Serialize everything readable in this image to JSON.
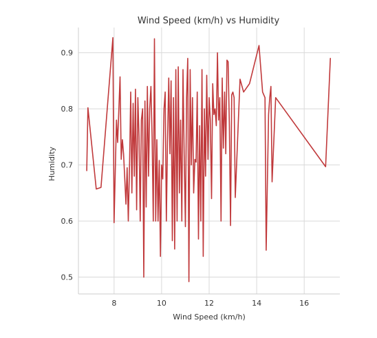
{
  "chart_data": {
    "type": "line",
    "title": "Wind Speed (km/h) vs Humidity",
    "xlabel": "Wind Speed (km/h)",
    "ylabel": "Humidity",
    "xlim": [
      6.5,
      17.5
    ],
    "ylim": [
      0.47,
      0.945
    ],
    "xticks": [
      8,
      10,
      12,
      14,
      16
    ],
    "yticks": [
      0.5,
      0.6,
      0.7,
      0.8,
      0.9
    ],
    "xtick_labels": [
      "8",
      "10",
      "12",
      "14",
      "16"
    ],
    "ytick_labels": [
      "0.5",
      "0.6",
      "0.7",
      "0.8",
      "0.9"
    ],
    "grid": true,
    "line_color": "#c0393b",
    "series": [
      {
        "x": [
          6.85,
          6.9,
          7.25,
          7.45,
          7.95,
          8.0,
          8.1,
          8.15,
          8.25,
          8.3,
          8.35,
          8.4,
          8.5,
          8.55,
          8.6,
          8.65,
          8.7,
          8.75,
          8.8,
          8.85,
          8.9,
          8.95,
          9.0,
          9.05,
          9.1,
          9.15,
          9.2,
          9.25,
          9.3,
          9.35,
          9.4,
          9.45,
          9.5,
          9.55,
          9.6,
          9.65,
          9.7,
          9.75,
          9.8,
          9.85,
          9.9,
          9.95,
          10.0,
          10.05,
          10.1,
          10.15,
          10.2,
          10.25,
          10.3,
          10.35,
          10.4,
          10.45,
          10.5,
          10.55,
          10.6,
          10.65,
          10.7,
          10.75,
          10.8,
          10.85,
          10.9,
          10.95,
          11.0,
          11.05,
          11.1,
          11.15,
          11.2,
          11.25,
          11.3,
          11.35,
          11.4,
          11.45,
          11.5,
          11.55,
          11.6,
          11.65,
          11.7,
          11.75,
          11.8,
          11.85,
          11.9,
          11.95,
          12.0,
          12.05,
          12.1,
          12.15,
          12.2,
          12.25,
          12.3,
          12.35,
          12.4,
          12.45,
          12.5,
          12.55,
          12.6,
          12.65,
          12.7,
          12.75,
          12.8,
          12.85,
          12.9,
          12.95,
          13.0,
          13.05,
          13.1,
          13.3,
          13.45,
          13.7,
          14.1,
          14.25,
          14.35,
          14.4,
          14.5,
          14.55,
          14.6,
          14.65,
          14.8,
          16.9,
          17.1
        ],
        "y": [
          0.69,
          0.802,
          0.657,
          0.66,
          0.927,
          0.597,
          0.78,
          0.74,
          0.857,
          0.71,
          0.745,
          0.72,
          0.63,
          0.695,
          0.6,
          0.7,
          0.83,
          0.65,
          0.81,
          0.68,
          0.835,
          0.62,
          0.82,
          0.75,
          0.6,
          0.78,
          0.8,
          0.5,
          0.814,
          0.625,
          0.84,
          0.68,
          0.8,
          0.84,
          0.75,
          0.6,
          0.925,
          0.6,
          0.745,
          0.6,
          0.708,
          0.537,
          0.7,
          0.675,
          0.8,
          0.83,
          0.6,
          0.74,
          0.855,
          0.72,
          0.85,
          0.565,
          0.82,
          0.55,
          0.87,
          0.6,
          0.875,
          0.65,
          0.78,
          0.6,
          0.87,
          0.72,
          0.59,
          0.82,
          0.89,
          0.492,
          0.87,
          0.7,
          0.82,
          0.65,
          0.71,
          0.705,
          0.83,
          0.568,
          0.77,
          0.6,
          0.87,
          0.537,
          0.8,
          0.68,
          0.86,
          0.71,
          0.82,
          0.78,
          0.64,
          0.845,
          0.79,
          0.8,
          0.77,
          0.9,
          0.78,
          0.82,
          0.6,
          0.855,
          0.73,
          0.83,
          0.72,
          0.887,
          0.884,
          0.77,
          0.592,
          0.825,
          0.83,
          0.82,
          0.642,
          0.853,
          0.83,
          0.845,
          0.913,
          0.83,
          0.82,
          0.548,
          0.79,
          0.82,
          0.84,
          0.67,
          0.82,
          0.697,
          0.89
        ]
      }
    ]
  }
}
